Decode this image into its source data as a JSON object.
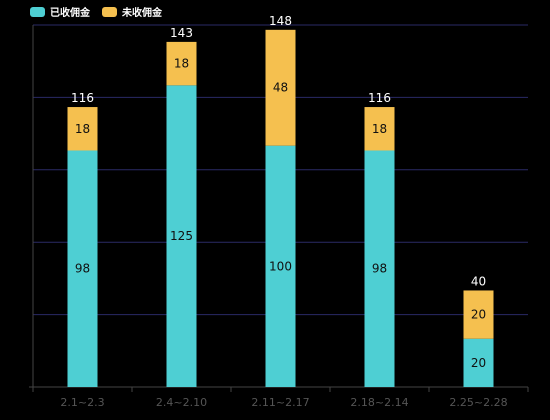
{
  "legend": {
    "collected_label": "已收佣金",
    "uncollected_label": "未收佣金"
  },
  "colors": {
    "collected": "#4ecfd3",
    "uncollected": "#f5c04f",
    "axis": "#444444",
    "grid": "#2a2a66",
    "tick_text": "#555555",
    "label_text": "#111111",
    "total_text": "#ffffff"
  },
  "chart_data": {
    "type": "bar",
    "stacked": true,
    "categories": [
      "2.1~2.3",
      "2.4~2.10",
      "2.11~2.17",
      "2.18~2.14",
      "2.25~2.28"
    ],
    "series": [
      {
        "name": "已收佣金",
        "values": [
          98,
          125,
          100,
          98,
          20
        ]
      },
      {
        "name": "未收佣金",
        "values": [
          18,
          18,
          48,
          18,
          20
        ]
      }
    ],
    "totals": [
      116,
      143,
      148,
      116,
      40
    ],
    "ylim": [
      0,
      150
    ],
    "grid": true,
    "legend_position": "top-left",
    "title": "",
    "xlabel": "",
    "ylabel": ""
  }
}
